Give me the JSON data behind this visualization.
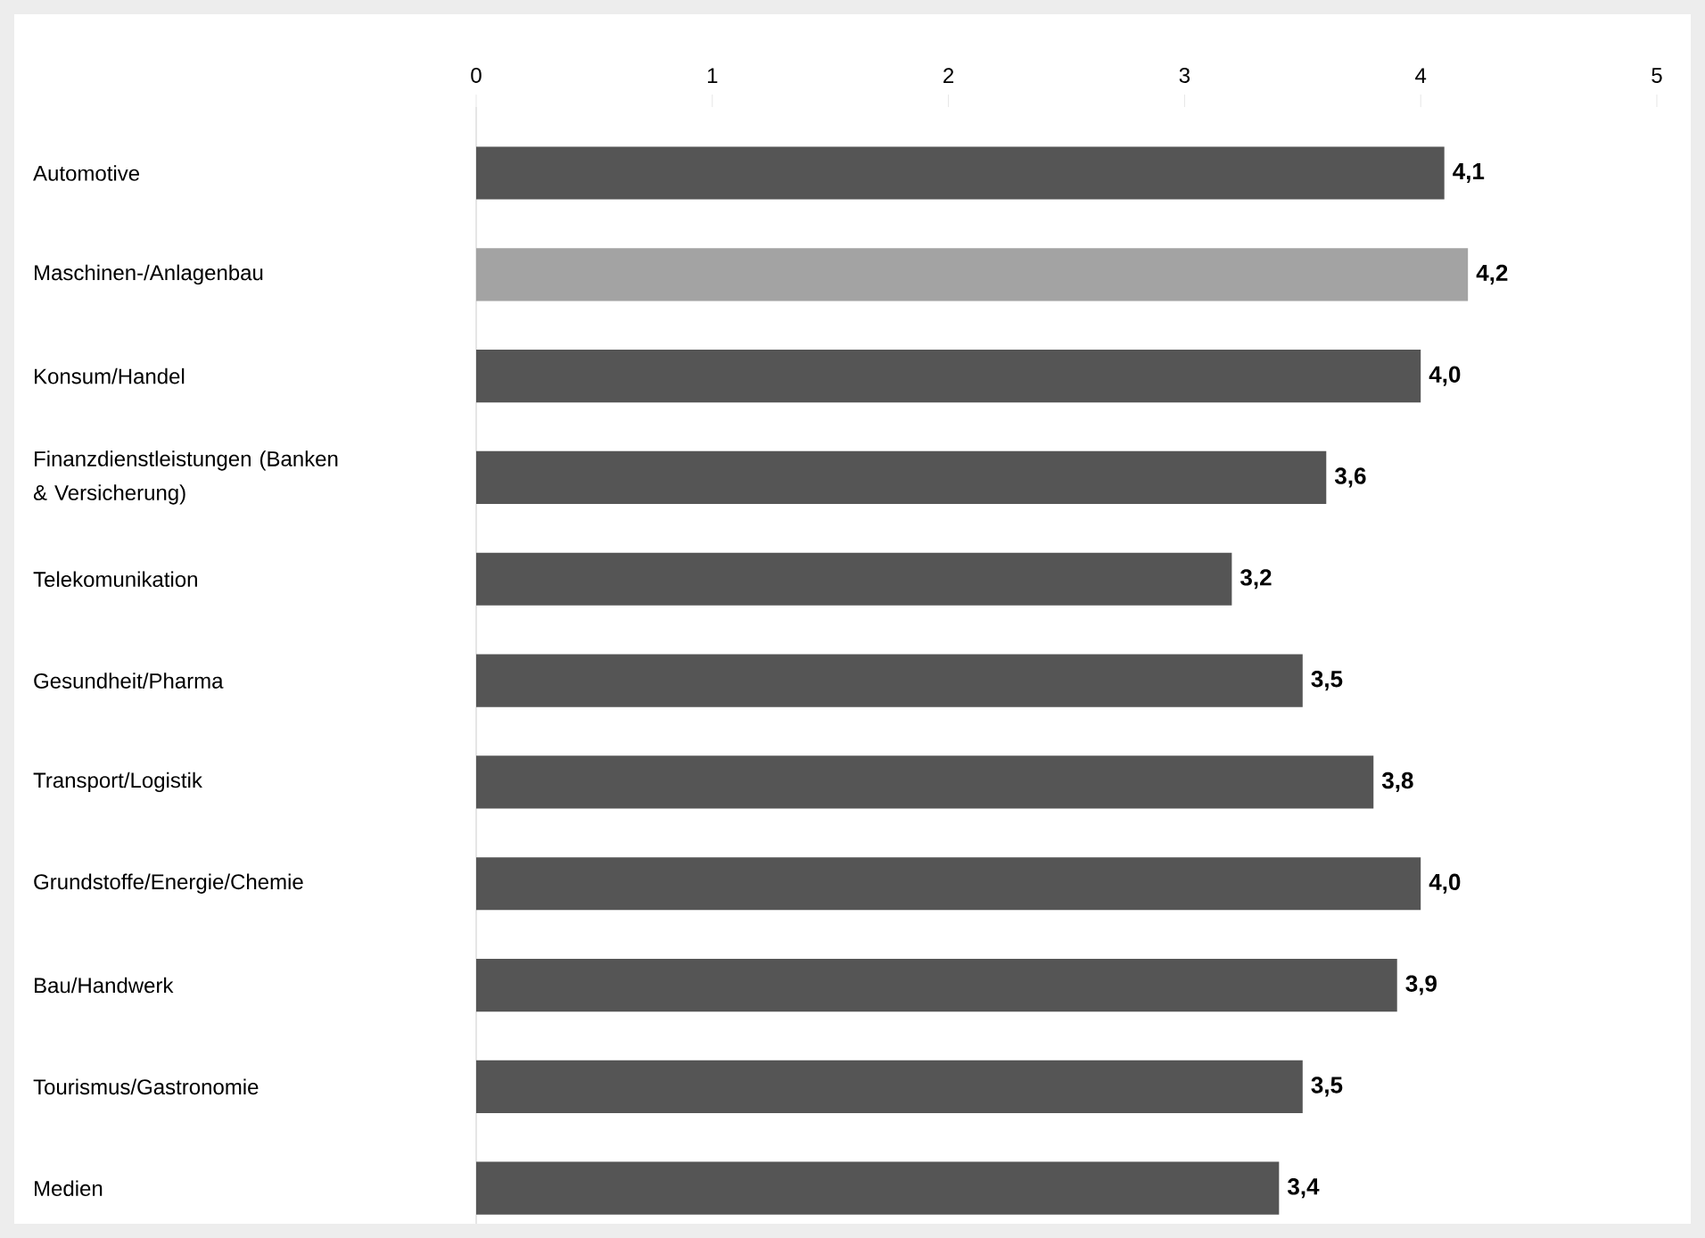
{
  "chart_data": {
    "type": "bar",
    "orientation": "horizontal",
    "categories": [
      "Automotive",
      "Maschinen-/Anlagenbau",
      "Konsum/Handel",
      "Finanzdienstleistungen (Banken & Versicherung)",
      "Telekomunikation",
      "Gesundheit/Pharma",
      "Transport/Logistik",
      "Grundstoffe/Energie/Chemie",
      "Bau/Handwerk",
      "Tourismus/Gastronomie",
      "Medien"
    ],
    "values": [
      4.1,
      4.2,
      4.0,
      3.6,
      3.2,
      3.5,
      3.8,
      4.0,
      3.9,
      3.5,
      3.4
    ],
    "value_labels": [
      "4,1",
      "4,2",
      "4,0",
      "3,6",
      "3,2",
      "3,5",
      "3,8",
      "4,0",
      "3,9",
      "3,5",
      "3,4"
    ],
    "colors": [
      "#555555",
      "#a3a3a3",
      "#555555",
      "#555555",
      "#555555",
      "#555555",
      "#555555",
      "#555555",
      "#555555",
      "#555555",
      "#555555"
    ],
    "xlim": [
      0,
      5
    ],
    "xticks": [
      0,
      1,
      2,
      3,
      4,
      5
    ],
    "grid": false
  }
}
